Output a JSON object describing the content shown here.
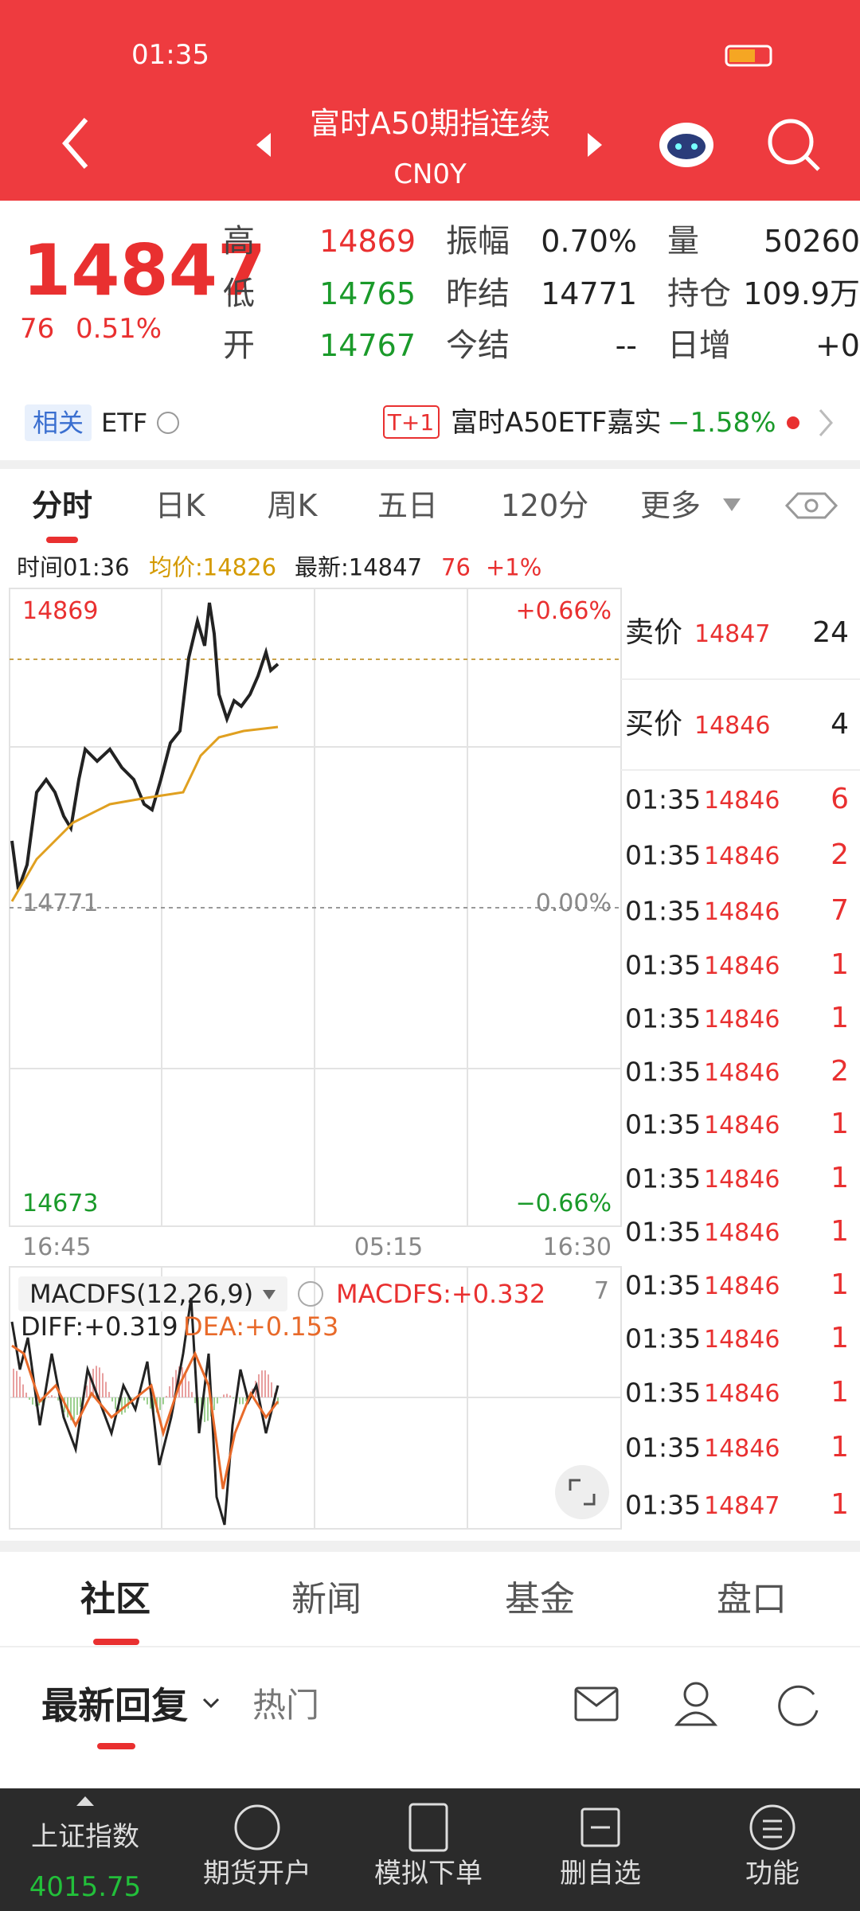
{
  "status_bar": {
    "time": "01:35"
  },
  "header": {
    "title": "富时A50期指连续",
    "subtitle": "CN0Y"
  },
  "quote": {
    "price": "14847",
    "change": "76",
    "change_pct": "0.51%",
    "rows": [
      [
        {
          "label": "高",
          "value": "14869"
        },
        {
          "label": "振幅",
          "value": "0.70%"
        },
        {
          "label": "量",
          "value": "50260"
        }
      ],
      [
        {
          "label": "低",
          "value": "14765"
        },
        {
          "label": "昨结",
          "value": "14771"
        },
        {
          "label": "持仓",
          "value": "109.9万"
        }
      ],
      [
        {
          "label": "开",
          "value": "14767"
        },
        {
          "label": "今结",
          "value": "--"
        },
        {
          "label": "日增",
          "value": "+0"
        }
      ]
    ]
  },
  "etf": {
    "tag": "相关",
    "name": "ETF",
    "badge": "T+1",
    "fund": "富时A50ETF嘉实",
    "change": "−1.58%"
  },
  "tabs": [
    "分时",
    "日K",
    "周K",
    "五日",
    "120分",
    "更多"
  ],
  "info": {
    "time": "时间01:36",
    "avg": "均价:14826",
    "latest": "最新:14847",
    "change": "76",
    "pct": "+1%"
  },
  "chart": {
    "y_top": "14869",
    "y_mid": "14771",
    "y_bottom": "14673",
    "pct_top": "+0.66%",
    "pct_mid": "0.00%",
    "pct_bottom": "−0.66%",
    "x_labels": [
      "16:45",
      "05:15",
      "16:30"
    ]
  },
  "macd": {
    "name": "MACDFS(12,26,9)",
    "value": "MACDFS:+0.332",
    "right": "7",
    "diff": "DIFF:+0.319",
    "dea": "DEA:+0.153"
  },
  "order_book": {
    "ask": {
      "label": "卖价",
      "price": "14847",
      "volume": "24"
    },
    "bid": {
      "label": "买价",
      "price": "14846",
      "volume": "4"
    },
    "trades": [
      {
        "time": "01:35",
        "price": "14846",
        "volume": "6"
      },
      {
        "time": "01:35",
        "price": "14846",
        "volume": "2"
      },
      {
        "time": "01:35",
        "price": "14846",
        "volume": "7"
      },
      {
        "time": "01:35",
        "price": "14846",
        "volume": "1"
      },
      {
        "time": "01:35",
        "price": "14846",
        "volume": "1"
      },
      {
        "time": "01:35",
        "price": "14846",
        "volume": "2"
      },
      {
        "time": "01:35",
        "price": "14846",
        "volume": "1"
      },
      {
        "time": "01:35",
        "price": "14846",
        "volume": "1"
      },
      {
        "time": "01:35",
        "price": "14846",
        "volume": "1"
      },
      {
        "time": "01:35",
        "price": "14846",
        "volume": "1"
      },
      {
        "time": "01:35",
        "price": "14846",
        "volume": "1"
      },
      {
        "time": "01:35",
        "price": "14846",
        "volume": "1"
      },
      {
        "time": "01:35",
        "price": "14846",
        "volume": "1"
      },
      {
        "time": "01:35",
        "price": "14847",
        "volume": "1"
      }
    ]
  },
  "community_tabs": [
    "社区",
    "新闻",
    "基金",
    "盘口"
  ],
  "sub_tabs": [
    "最新回复",
    "热门"
  ],
  "bottom_nav": {
    "index_name": "上证指数",
    "index_value": "4015.75",
    "items": [
      "期货开户",
      "模拟下单",
      "删自选",
      "功能"
    ]
  }
}
